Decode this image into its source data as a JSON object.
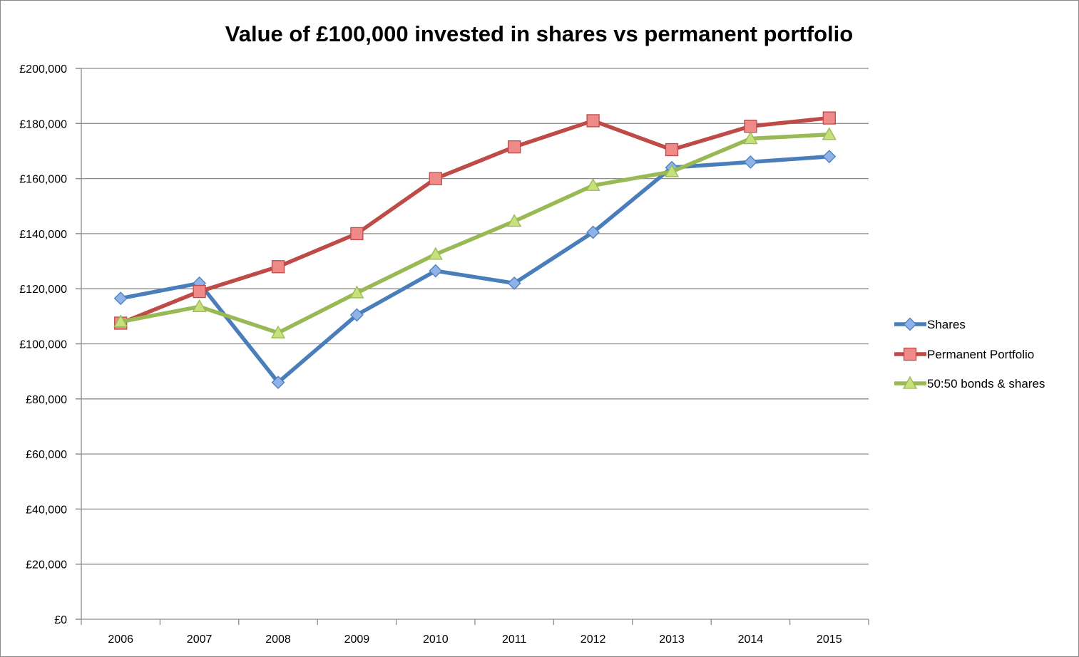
{
  "chart_data": {
    "type": "line",
    "title": "Value of £100,000 invested in shares vs permanent portfolio",
    "xlabel": "",
    "ylabel": "",
    "x": [
      "2006",
      "2007",
      "2008",
      "2009",
      "2010",
      "2011",
      "2012",
      "2013",
      "2014",
      "2015"
    ],
    "ylim": [
      0,
      200000
    ],
    "y_ticks": [
      0,
      20000,
      40000,
      60000,
      80000,
      100000,
      120000,
      140000,
      160000,
      180000,
      200000
    ],
    "y_tick_labels": [
      "£0",
      "£20,000",
      "£40,000",
      "£60,000",
      "£80,000",
      "£100,000",
      "£120,000",
      "£140,000",
      "£160,000",
      "£180,000",
      "£200,000"
    ],
    "grid": "horizontal",
    "legend_position": "right",
    "series": [
      {
        "name": "Shares",
        "color": "#4a7ebb",
        "marker": "diamond",
        "values": [
          116500,
          122000,
          86000,
          110500,
          126500,
          122000,
          140500,
          164000,
          166000,
          168000
        ]
      },
      {
        "name": "Permanent Portfolio",
        "color": "#be4b48",
        "marker": "square",
        "values": [
          107500,
          119000,
          128000,
          140000,
          160000,
          171500,
          181000,
          170500,
          179000,
          182000
        ]
      },
      {
        "name": "50:50 bonds & shares",
        "color": "#98b954",
        "marker": "triangle",
        "values": [
          108000,
          113500,
          104000,
          118500,
          132500,
          144500,
          157500,
          162500,
          174500,
          176000
        ]
      }
    ]
  }
}
